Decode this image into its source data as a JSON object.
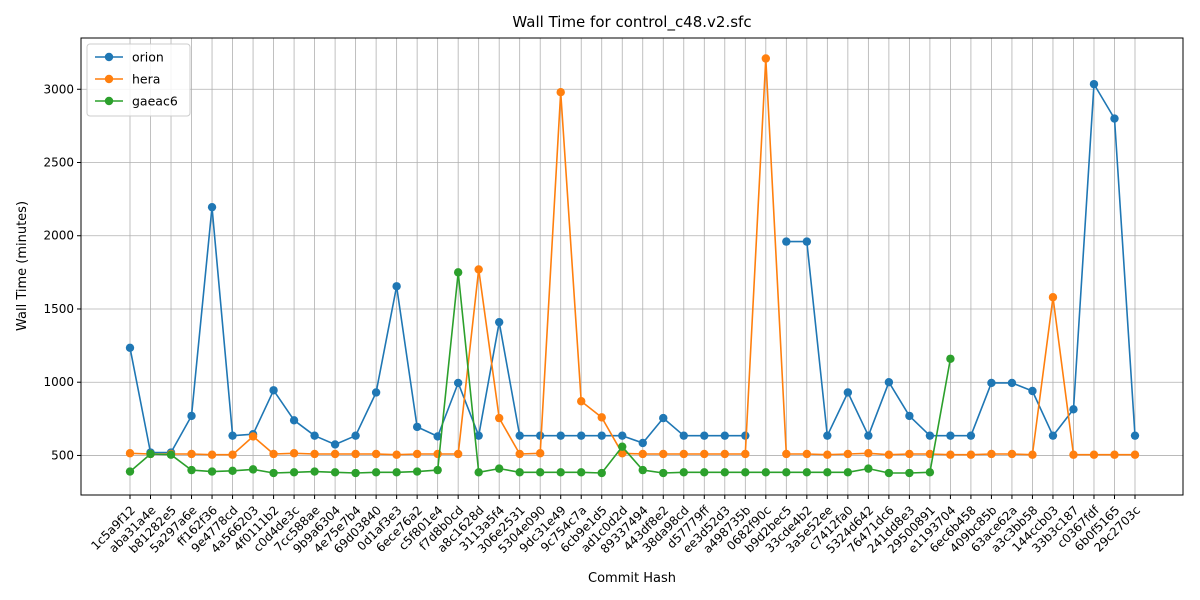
{
  "chart_data": {
    "type": "line",
    "title": "Wall Time for control_c48.v2.sfc",
    "xlabel": "Commit Hash",
    "ylabel": "Wall Time (minutes)",
    "ylim": [
      230,
      3350
    ],
    "yticks": [
      500,
      1000,
      1500,
      2000,
      2500,
      3000
    ],
    "grid": true,
    "legend_position": "top-left",
    "categories": [
      "1c5a9f12",
      "aba31a4e",
      "b81282e5",
      "5a297a6e",
      "ff162f36",
      "9e4778cd",
      "4a566203",
      "4f0111b2",
      "c0d4de3c",
      "7cc588ae",
      "9b9a6304",
      "4e75e7b4",
      "69d03840",
      "0d1af3e3",
      "6ece76a2",
      "c5f801e4",
      "f7d8b0cd",
      "a8c1628d",
      "3113a5f4",
      "306e2531",
      "5304e090",
      "9dc31e49",
      "9c754c7a",
      "6cb9e1d5",
      "ad1c0d2d",
      "89337494",
      "443df8e2",
      "38da98cd",
      "d57779ff",
      "ee3d52d3",
      "a498735b",
      "0682f90c",
      "b9d2bec5",
      "33cde4b2",
      "3a5e52ee",
      "c7412fa0",
      "5324d642",
      "76471dc6",
      "241dd8e3",
      "29500891",
      "e1193704",
      "6ec6b458",
      "409bc85b",
      "63ace62a",
      "a3c3bb58",
      "144ccb03",
      "33b3c187",
      "c0367fdf",
      "6b0f5165",
      "29c2703c"
    ],
    "series": [
      {
        "name": "orion",
        "color": "#1f77b4",
        "values": [
          1235,
          520,
          520,
          770,
          2195,
          635,
          645,
          945,
          740,
          635,
          575,
          635,
          930,
          1655,
          695,
          630,
          995,
          635,
          1410,
          635,
          635,
          635,
          635,
          635,
          635,
          585,
          755,
          635,
          635,
          635,
          635,
          null,
          1960,
          1960,
          635,
          930,
          635,
          1000,
          770,
          635,
          635,
          635,
          995,
          995,
          940,
          635,
          815,
          3035,
          2800,
          635
        ]
      },
      {
        "name": "hera",
        "color": "#ff7f0e",
        "values": [
          515,
          510,
          510,
          510,
          505,
          505,
          630,
          510,
          515,
          510,
          510,
          510,
          510,
          505,
          510,
          510,
          510,
          1770,
          755,
          510,
          515,
          2980,
          870,
          760,
          515,
          510,
          510,
          510,
          510,
          510,
          510,
          3210,
          510,
          510,
          505,
          510,
          515,
          505,
          510,
          510,
          505,
          505,
          510,
          510,
          505,
          1580,
          505,
          505,
          505,
          505
        ]
      },
      {
        "name": "gaeac6",
        "color": "#2ca02c",
        "values": [
          390,
          510,
          505,
          400,
          390,
          395,
          405,
          380,
          385,
          390,
          385,
          380,
          385,
          385,
          390,
          400,
          1750,
          385,
          410,
          385,
          385,
          385,
          385,
          380,
          560,
          400,
          380,
          385,
          385,
          385,
          385,
          385,
          385,
          385,
          385,
          385,
          410,
          380,
          380,
          385,
          1160,
          null,
          null,
          null,
          null,
          null,
          null,
          null,
          null,
          null
        ]
      }
    ]
  }
}
